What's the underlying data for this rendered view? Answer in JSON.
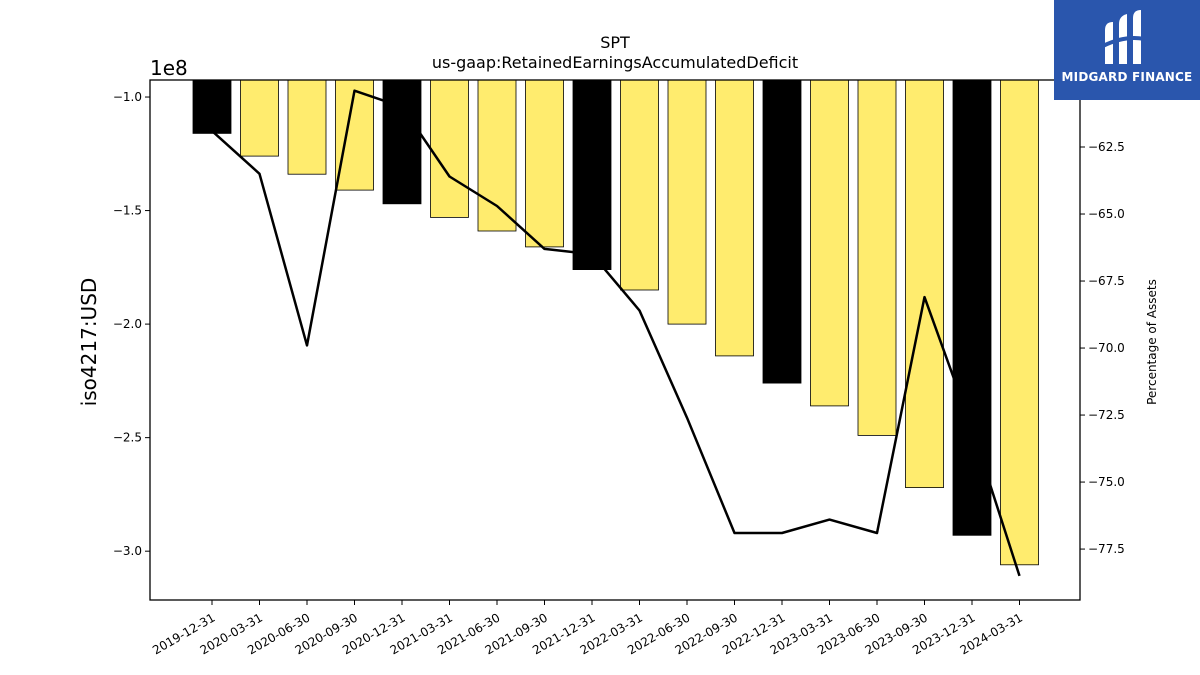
{
  "chart_data": {
    "type": "bar",
    "title": "SPT",
    "subtitle": "us-gaap:RetainedEarningsAccumulatedDeficit",
    "ylabel": "iso4217:USD",
    "ylabel_right": "Percentage of Assets",
    "y_scale_label": "1e8",
    "categories": [
      "2019-12-31",
      "2020-03-31",
      "2020-06-30",
      "2020-09-30",
      "2020-12-31",
      "2021-03-31",
      "2021-06-30",
      "2021-09-30",
      "2021-12-31",
      "2022-03-31",
      "2022-06-30",
      "2022-09-30",
      "2022-12-31",
      "2023-03-31",
      "2023-06-30",
      "2023-09-30",
      "2023-12-31",
      "2024-03-31"
    ],
    "series": [
      {
        "type": "bar",
        "axis": "left",
        "unit_multiplier": 100000000,
        "values": [
          -1.16,
          -1.26,
          -1.34,
          -1.41,
          -1.47,
          -1.53,
          -1.59,
          -1.66,
          -1.76,
          -1.85,
          -2.0,
          -2.14,
          -2.26,
          -2.36,
          -2.49,
          -2.72,
          -2.93,
          -3.06
        ],
        "colors": [
          "#000000",
          "#ffec6e",
          "#ffec6e",
          "#ffec6e",
          "#000000",
          "#ffec6e",
          "#ffec6e",
          "#ffec6e",
          "#000000",
          "#ffec6e",
          "#ffec6e",
          "#ffec6e",
          "#000000",
          "#ffec6e",
          "#ffec6e",
          "#ffec6e",
          "#000000",
          "#ffec6e"
        ]
      },
      {
        "type": "line",
        "axis": "right",
        "color": "#000000",
        "values": [
          -61.9,
          -63.5,
          -69.9,
          -60.4,
          -61.0,
          -63.6,
          -64.7,
          -66.3,
          -66.5,
          -68.6,
          -72.6,
          -76.9,
          -76.9,
          -76.4,
          -76.9,
          -68.1,
          -73.0,
          -78.5
        ]
      }
    ],
    "yticks_left": [
      -1.0,
      -1.5,
      -2.0,
      -2.5,
      -3.0
    ],
    "ylim_left": [
      -3.215,
      -0.925
    ],
    "yticks_right": [
      -62.5,
      -65.0,
      -67.5,
      -70.0,
      -72.5,
      -75.0,
      -77.5
    ],
    "ylim_right": [
      -79.4,
      -60.0
    ],
    "grid": false
  },
  "logo": {
    "text": "MIDGARD FINANCE"
  }
}
